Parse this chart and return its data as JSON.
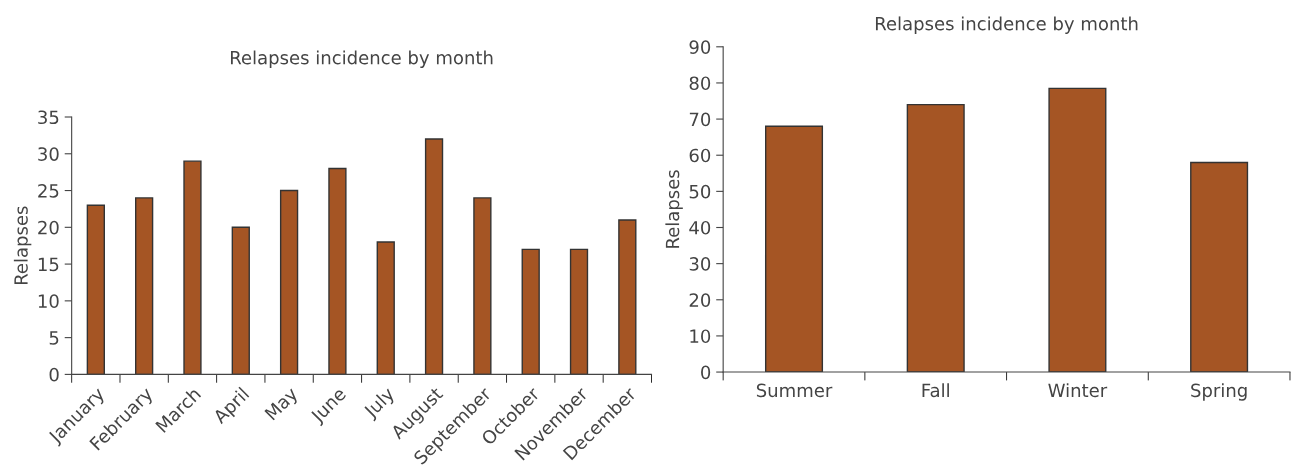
{
  "chart_data": [
    {
      "type": "bar",
      "title": "Relapses incidence by month",
      "ylabel": "Relapses",
      "categories": [
        "January",
        "February",
        "March",
        "April",
        "May",
        "June",
        "July",
        "August",
        "September",
        "October",
        "November",
        "December"
      ],
      "values": [
        23,
        24,
        29,
        20,
        25,
        28,
        18,
        32,
        24,
        17,
        17,
        21
      ],
      "color": "#a55524",
      "ylim": [
        0,
        35
      ],
      "yticks": [
        0,
        5,
        10,
        15,
        20,
        25,
        30,
        35
      ],
      "grid": false
    },
    {
      "type": "bar",
      "title": "Relapses incidence by month",
      "ylabel": "Relapses",
      "categories": [
        "Summer",
        "Fall",
        "Winter",
        "Spring"
      ],
      "values": [
        68,
        74,
        78.5,
        58
      ],
      "color": "#a55524",
      "ylim": [
        0,
        90
      ],
      "yticks": [
        0,
        10,
        20,
        30,
        40,
        50,
        60,
        70,
        80,
        90
      ],
      "grid": false
    }
  ]
}
